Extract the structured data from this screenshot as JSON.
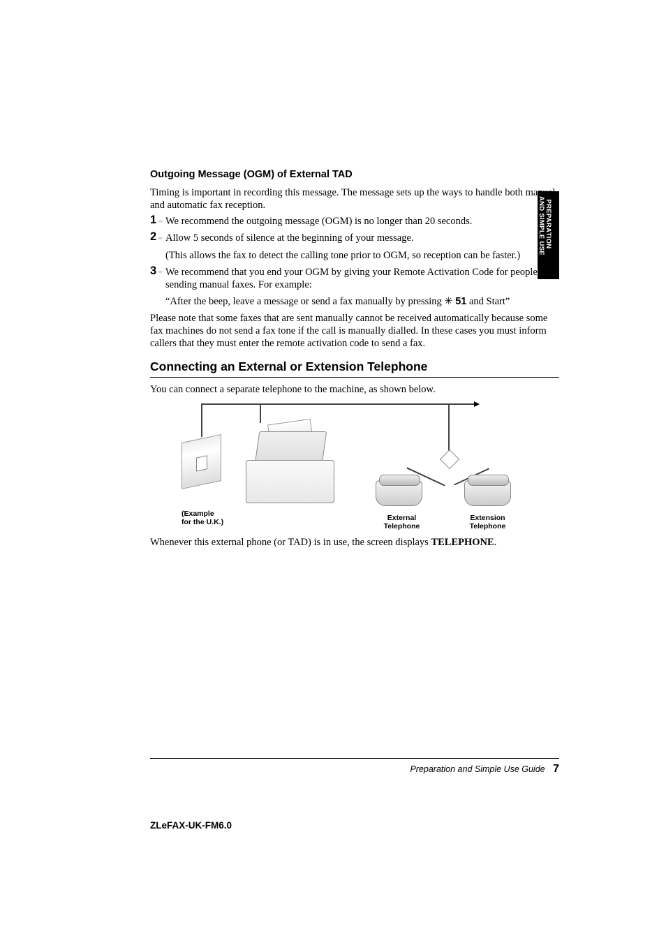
{
  "sideTab": {
    "line1": "PREPARATION",
    "line2": "AND SIMPLE USE"
  },
  "section1": {
    "heading": "Outgoing Message (OGM) of External TAD",
    "intro": "Timing is important in recording this message. The message sets up the ways to handle both manual and automatic fax reception.",
    "steps": {
      "s1": {
        "num": "1",
        "text": "We recommend the outgoing message (OGM) is no longer than 20 seconds."
      },
      "s2": {
        "num": "2",
        "text": "Allow 5 seconds of silence at the beginning of your message.",
        "sub": "(This allows the fax to detect the calling tone prior to OGM, so reception can be faster.)"
      },
      "s3": {
        "num": "3",
        "text": "We recommend that you end your OGM by giving your Remote Activation Code for people sending manual faxes. For example:",
        "quote_before": "“After the beep, leave a message or send a fax manually by pressing ",
        "star": "✳",
        "code": "51",
        "quote_after": " and Start”"
      }
    },
    "note": "Please note that some faxes that are sent manually cannot be received automatically because some fax machines do not send a fax tone if the call is manually dialled. In these cases you must inform callers that they must enter the remote activation code to send a fax."
  },
  "section2": {
    "heading": "Connecting an External or Extension Telephone",
    "intro": "You can connect a separate telephone to the machine, as shown below.",
    "diagram": {
      "example_line1": "(Example",
      "example_line2": "for the U.K.)",
      "external_line1": "External",
      "external_line2": "Telephone",
      "extension_line1": "Extension",
      "extension_line2": "Telephone"
    },
    "closing_before": "Whenever this external phone (or TAD) is in use, the screen displays ",
    "closing_bold": "TELEPHONE",
    "closing_after": "."
  },
  "footer": {
    "title": "Preparation and Simple Use Guide",
    "pagenum": "7"
  },
  "docCode": "ZLeFAX-UK-FM6.0"
}
